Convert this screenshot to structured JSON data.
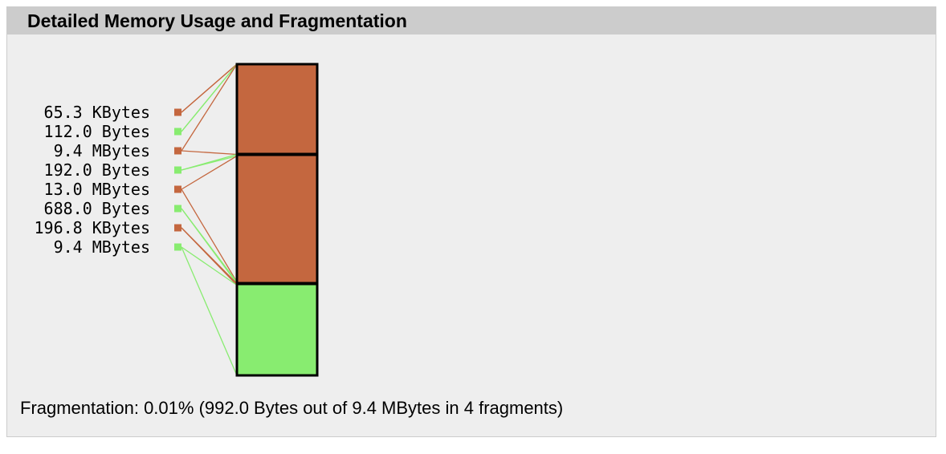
{
  "panel": {
    "title": "Detailed Memory Usage and Fragmentation",
    "fragmentation_text": "Fragmentation: 0.01% (992.0 Bytes out of 9.4 MBytes in 4 fragments)"
  },
  "colors": {
    "used": "#c4673f",
    "free": "#88ec70",
    "outline": "#000000",
    "panel_bg": "#eeeeee",
    "header_bg": "#cccccc"
  },
  "chart_data": {
    "type": "memory-fragmentation-bar",
    "segments": [
      {
        "label": "65.3 KBytes",
        "kind": "used",
        "start": 0.0,
        "end": 0.0
      },
      {
        "label": "112.0 Bytes",
        "kind": "free",
        "start": 0.0,
        "end": 0.0
      },
      {
        "label": "9.4 MBytes",
        "kind": "used",
        "start": 0.0,
        "end": 0.29
      },
      {
        "label": "192.0 Bytes",
        "kind": "free",
        "start": 0.29,
        "end": 0.295
      },
      {
        "label": "13.0 MBytes",
        "kind": "used",
        "start": 0.295,
        "end": 0.7
      },
      {
        "label": "688.0 Bytes",
        "kind": "free",
        "start": 0.7,
        "end": 0.705
      },
      {
        "label": "196.8 KBytes",
        "kind": "used",
        "start": 0.705,
        "end": 0.71
      },
      {
        "label": "9.4 MBytes",
        "kind": "free",
        "start": 0.71,
        "end": 1.0
      }
    ],
    "boundaries": [
      0.29,
      0.705
    ]
  }
}
